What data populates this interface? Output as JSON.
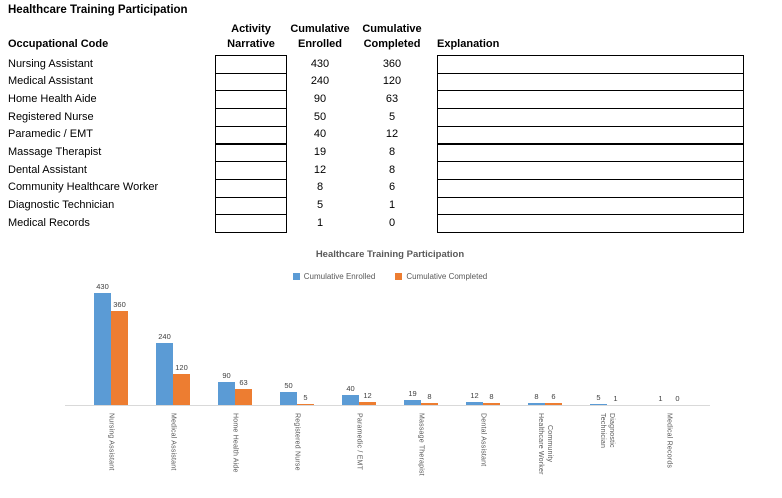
{
  "page": {
    "title": "Healthcare Training Participation"
  },
  "table": {
    "headers": {
      "occupational_code": "Occupational Code",
      "activity_narrative": "Activity\nNarrative",
      "cumulative_enrolled": "Cumulative\nEnrolled",
      "cumulative_completed": "Cumulative\nCompleted",
      "explanation": "Explanation"
    },
    "rows": [
      {
        "occupational_code": "Nursing Assistant",
        "activity_narrative": "",
        "cumulative_enrolled": 430,
        "cumulative_completed": 360,
        "explanation": ""
      },
      {
        "occupational_code": "Medical Assistant",
        "activity_narrative": "",
        "cumulative_enrolled": 240,
        "cumulative_completed": 120,
        "explanation": ""
      },
      {
        "occupational_code": "Home Health Aide",
        "activity_narrative": "",
        "cumulative_enrolled": 90,
        "cumulative_completed": 63,
        "explanation": ""
      },
      {
        "occupational_code": "Registered Nurse",
        "activity_narrative": "",
        "cumulative_enrolled": 50,
        "cumulative_completed": 5,
        "explanation": ""
      },
      {
        "occupational_code": "Paramedic / EMT",
        "activity_narrative": "",
        "cumulative_enrolled": 40,
        "cumulative_completed": 12,
        "explanation": ""
      },
      {
        "occupational_code": "Massage Therapist",
        "activity_narrative": "",
        "cumulative_enrolled": 19,
        "cumulative_completed": 8,
        "explanation": ""
      },
      {
        "occupational_code": "Dental Assistant",
        "activity_narrative": "",
        "cumulative_enrolled": 12,
        "cumulative_completed": 8,
        "explanation": ""
      },
      {
        "occupational_code": "Community Healthcare Worker",
        "activity_narrative": "",
        "cumulative_enrolled": 8,
        "cumulative_completed": 6,
        "explanation": ""
      },
      {
        "occupational_code": "Diagnostic Technician",
        "activity_narrative": "",
        "cumulative_enrolled": 5,
        "cumulative_completed": 1,
        "explanation": ""
      },
      {
        "occupational_code": "Medical Records",
        "activity_narrative": "",
        "cumulative_enrolled": 1,
        "cumulative_completed": 0,
        "explanation": ""
      }
    ]
  },
  "chart_data": {
    "type": "bar",
    "title": "Healthcare Training Participation",
    "categories": [
      "Nursing Assistant",
      "Medical Assistant",
      "Home Health Aide",
      "Registered Nurse",
      "Paramedic / EMT",
      "Massage Therapist",
      "Dental Assistant",
      "Community Healthcare Worker",
      "Diagnostic Technician",
      "Medical Records"
    ],
    "category_labels": [
      "Nursing Assistant",
      "Medical Assistant",
      "Home Health Aide",
      "Registered Nurse",
      "Paramedic / EMT",
      "Massage Therapist",
      "Dental Assistant",
      "Community\nHealthcare Worker",
      "Diagnostic\nTechnician",
      "Medical Records"
    ],
    "series": [
      {
        "name": "Cumulative Enrolled",
        "color": "#5B9BD5",
        "values": [
          430,
          240,
          90,
          50,
          40,
          19,
          12,
          8,
          5,
          1
        ]
      },
      {
        "name": "Cumulative Completed",
        "color": "#ED7D31",
        "values": [
          360,
          120,
          63,
          5,
          12,
          8,
          8,
          6,
          1,
          0
        ]
      }
    ],
    "data_labels": true,
    "legend_position": "top",
    "gridlines": false,
    "xlabel": "",
    "ylabel": "",
    "ylim": [
      0,
      450
    ]
  },
  "colors": {
    "enrolled_blue": "#5B9BD5",
    "completed_orange": "#ED7D31",
    "axis_line": "#D9D9D9",
    "chart_text": "#595959",
    "data_label_text": "#404040"
  }
}
